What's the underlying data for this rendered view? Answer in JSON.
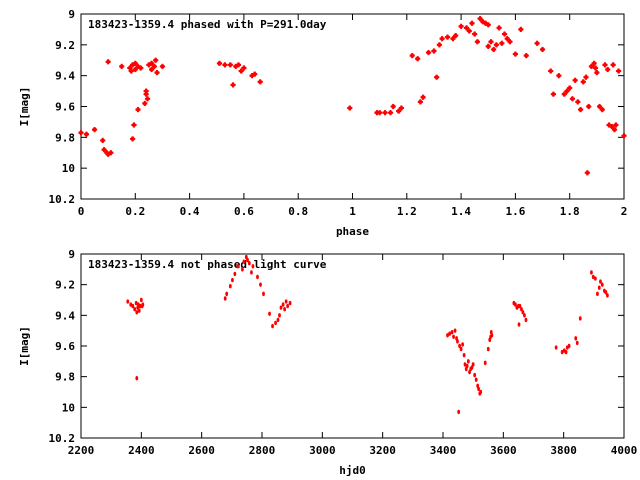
{
  "chart_data": [
    {
      "type": "scatter",
      "title": "183423-1359.4 phased with P=291.0day",
      "xlabel": "phase",
      "ylabel": "I[mag]",
      "xlim": [
        0,
        2
      ],
      "ylim": [
        10.2,
        9
      ],
      "y_inverted": true,
      "grid": false,
      "marker_color": "#ff0000",
      "xticks": [
        "0",
        "0.2",
        "0.4",
        "0.6",
        "0.8",
        "1",
        "1.2",
        "1.4",
        "1.6",
        "1.8",
        "2"
      ],
      "yticks": [
        "9",
        "9.2",
        "9.4",
        "9.6",
        "9.8",
        "10",
        "10.2"
      ],
      "points": [
        [
          0.0,
          9.77
        ],
        [
          0.02,
          9.78
        ],
        [
          0.05,
          9.75
        ],
        [
          0.08,
          9.82
        ],
        [
          0.085,
          9.88
        ],
        [
          0.095,
          9.9
        ],
        [
          0.1,
          9.91
        ],
        [
          0.11,
          9.9
        ],
        [
          0.1,
          9.31
        ],
        [
          0.15,
          9.34
        ],
        [
          0.18,
          9.35
        ],
        [
          0.185,
          9.37
        ],
        [
          0.19,
          9.33
        ],
        [
          0.2,
          9.32
        ],
        [
          0.2,
          9.36
        ],
        [
          0.21,
          9.34
        ],
        [
          0.22,
          9.35
        ],
        [
          0.19,
          9.81
        ],
        [
          0.195,
          9.72
        ],
        [
          0.21,
          9.62
        ],
        [
          0.235,
          9.58
        ],
        [
          0.24,
          9.52
        ],
        [
          0.24,
          9.5
        ],
        [
          0.245,
          9.55
        ],
        [
          0.25,
          9.33
        ],
        [
          0.26,
          9.36
        ],
        [
          0.26,
          9.32
        ],
        [
          0.27,
          9.34
        ],
        [
          0.275,
          9.3
        ],
        [
          0.28,
          9.38
        ],
        [
          0.3,
          9.34
        ],
        [
          0.51,
          9.32
        ],
        [
          0.53,
          9.33
        ],
        [
          0.55,
          9.33
        ],
        [
          0.56,
          9.46
        ],
        [
          0.57,
          9.34
        ],
        [
          0.58,
          9.33
        ],
        [
          0.59,
          9.37
        ],
        [
          0.6,
          9.35
        ],
        [
          0.63,
          9.4
        ],
        [
          0.64,
          9.39
        ],
        [
          0.66,
          9.44
        ],
        [
          0.99,
          9.61
        ],
        [
          1.09,
          9.64
        ],
        [
          1.1,
          9.64
        ],
        [
          1.12,
          9.64
        ],
        [
          1.14,
          9.64
        ],
        [
          1.15,
          9.6
        ],
        [
          1.17,
          9.63
        ],
        [
          1.18,
          9.61
        ],
        [
          1.22,
          9.27
        ],
        [
          1.24,
          9.29
        ],
        [
          1.25,
          9.57
        ],
        [
          1.26,
          9.54
        ],
        [
          1.28,
          9.25
        ],
        [
          1.3,
          9.24
        ],
        [
          1.31,
          9.41
        ],
        [
          1.32,
          9.2
        ],
        [
          1.33,
          9.16
        ],
        [
          1.35,
          9.15
        ],
        [
          1.37,
          9.16
        ],
        [
          1.38,
          9.14
        ],
        [
          1.4,
          9.08
        ],
        [
          1.42,
          9.09
        ],
        [
          1.43,
          9.11
        ],
        [
          1.44,
          9.06
        ],
        [
          1.45,
          9.13
        ],
        [
          1.46,
          9.18
        ],
        [
          1.47,
          9.03
        ],
        [
          1.48,
          9.05
        ],
        [
          1.49,
          9.06
        ],
        [
          1.5,
          9.07
        ],
        [
          1.51,
          9.18
        ],
        [
          1.5,
          9.21
        ],
        [
          1.52,
          9.23
        ],
        [
          1.53,
          9.2
        ],
        [
          1.54,
          9.09
        ],
        [
          1.55,
          9.19
        ],
        [
          1.56,
          9.13
        ],
        [
          1.57,
          9.16
        ],
        [
          1.58,
          9.18
        ],
        [
          1.6,
          9.26
        ],
        [
          1.62,
          9.1
        ],
        [
          1.64,
          9.27
        ],
        [
          1.68,
          9.19
        ],
        [
          1.7,
          9.23
        ],
        [
          1.73,
          9.37
        ],
        [
          1.74,
          9.52
        ],
        [
          1.76,
          9.4
        ],
        [
          1.78,
          9.52
        ],
        [
          1.79,
          9.5
        ],
        [
          1.8,
          9.48
        ],
        [
          1.81,
          9.55
        ],
        [
          1.82,
          9.43
        ],
        [
          1.83,
          9.57
        ],
        [
          1.84,
          9.62
        ],
        [
          1.85,
          9.44
        ],
        [
          1.86,
          9.41
        ],
        [
          1.865,
          10.03
        ],
        [
          1.87,
          9.6
        ],
        [
          1.88,
          9.34
        ],
        [
          1.89,
          9.32
        ],
        [
          1.895,
          9.35
        ],
        [
          1.9,
          9.38
        ],
        [
          1.91,
          9.6
        ],
        [
          1.92,
          9.62
        ],
        [
          1.93,
          9.33
        ],
        [
          1.94,
          9.36
        ],
        [
          1.945,
          9.72
        ],
        [
          1.955,
          9.73
        ],
        [
          1.96,
          9.33
        ],
        [
          1.965,
          9.75
        ],
        [
          1.97,
          9.72
        ],
        [
          1.98,
          9.37
        ],
        [
          2.0,
          9.79
        ]
      ]
    },
    {
      "type": "scatter",
      "title": "183423-1359.4 not phased light curve",
      "xlabel": "hjd0",
      "ylabel": "I[mag]",
      "xlim": [
        2200,
        4000
      ],
      "ylim": [
        10.2,
        9
      ],
      "y_inverted": true,
      "grid": false,
      "marker_color": "#ff0000",
      "xticks": [
        "2200",
        "2400",
        "2600",
        "2800",
        "3000",
        "3200",
        "3400",
        "3600",
        "3800",
        "4000"
      ],
      "yticks": [
        "9",
        "9.2",
        "9.4",
        "9.6",
        "9.8",
        "10",
        "10.2"
      ],
      "points": [
        [
          2355,
          9.31
        ],
        [
          2365,
          9.33
        ],
        [
          2372,
          9.34
        ],
        [
          2378,
          9.36
        ],
        [
          2383,
          9.32
        ],
        [
          2385,
          9.38
        ],
        [
          2388,
          9.35
        ],
        [
          2390,
          9.33
        ],
        [
          2393,
          9.37
        ],
        [
          2396,
          9.34
        ],
        [
          2400,
          9.3
        ],
        [
          2403,
          9.34
        ],
        [
          2405,
          9.33
        ],
        [
          2385,
          9.81
        ],
        [
          2678,
          9.29
        ],
        [
          2683,
          9.26
        ],
        [
          2695,
          9.21
        ],
        [
          2702,
          9.17
        ],
        [
          2710,
          9.13
        ],
        [
          2720,
          9.08
        ],
        [
          2735,
          9.1
        ],
        [
          2740,
          9.05
        ],
        [
          2748,
          9.02
        ],
        [
          2752,
          9.04
        ],
        [
          2758,
          9.06
        ],
        [
          2765,
          9.12
        ],
        [
          2770,
          9.08
        ],
        [
          2785,
          9.15
        ],
        [
          2795,
          9.2
        ],
        [
          2805,
          9.26
        ],
        [
          2825,
          9.39
        ],
        [
          2835,
          9.47
        ],
        [
          2845,
          9.45
        ],
        [
          2853,
          9.43
        ],
        [
          2858,
          9.4
        ],
        [
          2863,
          9.35
        ],
        [
          2870,
          9.33
        ],
        [
          2875,
          9.36
        ],
        [
          2880,
          9.31
        ],
        [
          2885,
          9.34
        ],
        [
          2893,
          9.32
        ],
        [
          3415,
          9.53
        ],
        [
          3422,
          9.52
        ],
        [
          3430,
          9.51
        ],
        [
          3435,
          9.54
        ],
        [
          3440,
          9.5
        ],
        [
          3445,
          9.55
        ],
        [
          3448,
          9.57
        ],
        [
          3452,
          10.03
        ],
        [
          3455,
          9.6
        ],
        [
          3460,
          9.62
        ],
        [
          3465,
          9.59
        ],
        [
          3470,
          9.66
        ],
        [
          3473,
          9.72
        ],
        [
          3477,
          9.75
        ],
        [
          3480,
          9.73
        ],
        [
          3484,
          9.7
        ],
        [
          3488,
          9.77
        ],
        [
          3492,
          9.75
        ],
        [
          3496,
          9.74
        ],
        [
          3500,
          9.72
        ],
        [
          3505,
          9.79
        ],
        [
          3510,
          9.82
        ],
        [
          3515,
          9.86
        ],
        [
          3518,
          9.88
        ],
        [
          3522,
          9.91
        ],
        [
          3525,
          9.9
        ],
        [
          3540,
          9.71
        ],
        [
          3550,
          9.62
        ],
        [
          3555,
          9.56
        ],
        [
          3558,
          9.54
        ],
        [
          3560,
          9.51
        ],
        [
          3562,
          9.53
        ],
        [
          3635,
          9.32
        ],
        [
          3640,
          9.33
        ],
        [
          3645,
          9.35
        ],
        [
          3650,
          9.34
        ],
        [
          3652,
          9.46
        ],
        [
          3655,
          9.34
        ],
        [
          3660,
          9.36
        ],
        [
          3665,
          9.38
        ],
        [
          3670,
          9.4
        ],
        [
          3675,
          9.43
        ],
        [
          3775,
          9.61
        ],
        [
          3795,
          9.64
        ],
        [
          3802,
          9.63
        ],
        [
          3808,
          9.64
        ],
        [
          3812,
          9.61
        ],
        [
          3818,
          9.6
        ],
        [
          3840,
          9.55
        ],
        [
          3845,
          9.58
        ],
        [
          3855,
          9.42
        ],
        [
          3892,
          9.12
        ],
        [
          3898,
          9.15
        ],
        [
          3905,
          9.16
        ],
        [
          3912,
          9.26
        ],
        [
          3918,
          9.22
        ],
        [
          3922,
          9.18
        ],
        [
          3928,
          9.2
        ],
        [
          3935,
          9.24
        ],
        [
          3940,
          9.25
        ],
        [
          3945,
          9.27
        ]
      ]
    }
  ]
}
